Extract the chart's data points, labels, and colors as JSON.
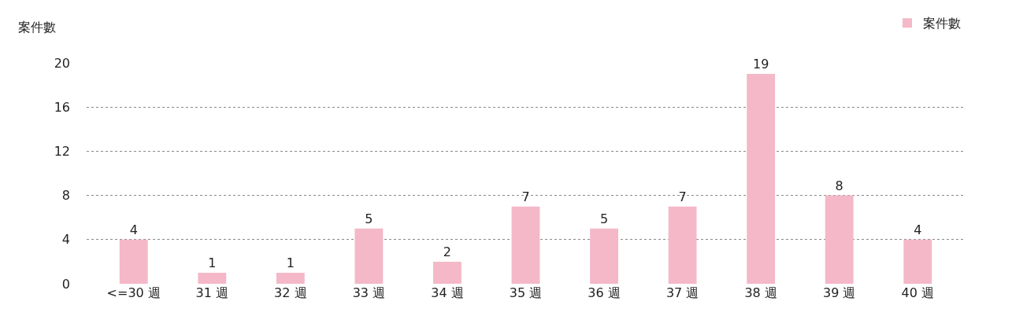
{
  "chart_data": {
    "type": "bar",
    "ylabel": "案件數",
    "categories": [
      "<=30 週",
      "31 週",
      "32 週",
      "33 週",
      "34 週",
      "35 週",
      "36 週",
      "37 週",
      "38 週",
      "39 週",
      "40 週"
    ],
    "series": [
      {
        "name": "案件數",
        "color": "#f4b8c8",
        "values": [
          4,
          1,
          1,
          5,
          2,
          7,
          5,
          7,
          19,
          8,
          4
        ]
      }
    ],
    "ylim": [
      0,
      20
    ],
    "yticks": [
      0,
      4,
      8,
      12,
      16,
      20
    ],
    "grid": "y",
    "legend": "top right",
    "data_labels": true
  }
}
